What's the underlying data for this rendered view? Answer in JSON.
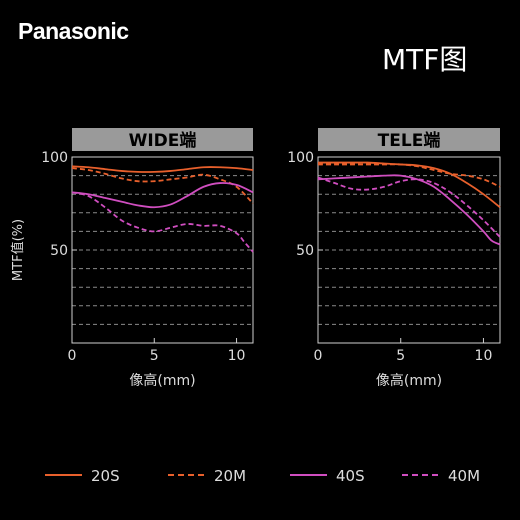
{
  "header": {
    "brand": "Panasonic",
    "title": "MTF图"
  },
  "chart_data": [
    {
      "type": "line",
      "title": "WIDE端",
      "xlabel": "像高(mm)",
      "ylabel": "MTF值(%)",
      "xlim": [
        0,
        11
      ],
      "ylim": [
        0,
        100
      ],
      "x_ticks": [
        0,
        5,
        10
      ],
      "y_ticks": [
        50,
        100
      ],
      "gridlines_y": [
        10,
        20,
        30,
        40,
        50,
        60,
        70,
        80,
        90
      ],
      "series": [
        {
          "name": "20S",
          "style": "solid",
          "color": "#e8602c",
          "x": [
            0,
            1,
            2,
            3,
            4,
            5,
            6,
            7,
            8,
            9,
            10,
            11
          ],
          "y": [
            95,
            94.5,
            93.5,
            92.5,
            92,
            92,
            92.5,
            93.5,
            94.5,
            94.5,
            94,
            93
          ]
        },
        {
          "name": "20M",
          "style": "dashed",
          "color": "#e8602c",
          "x": [
            0,
            1,
            2,
            3,
            4,
            5,
            6,
            7,
            8,
            9,
            10,
            11
          ],
          "y": [
            94,
            93,
            91,
            88.5,
            87,
            87,
            88,
            89,
            90.5,
            88,
            84,
            75
          ]
        },
        {
          "name": "40S",
          "style": "solid",
          "color": "#d04ec0",
          "x": [
            0,
            1,
            2,
            3,
            4,
            5,
            6,
            7,
            8,
            9,
            10,
            11
          ],
          "y": [
            81,
            80,
            78,
            76,
            74,
            73,
            74.5,
            79,
            84,
            86,
            85,
            81
          ]
        },
        {
          "name": "40M",
          "style": "dashed",
          "color": "#d04ec0",
          "x": [
            0,
            1,
            2,
            3,
            4,
            5,
            6,
            7,
            8,
            9,
            10,
            10.5,
            11
          ],
          "y": [
            81,
            79,
            73,
            66,
            62,
            60,
            62,
            64,
            63,
            63,
            59,
            54,
            49
          ]
        }
      ]
    },
    {
      "type": "line",
      "title": "TELE端",
      "xlabel": "像高(mm)",
      "ylabel": "",
      "xlim": [
        0,
        11
      ],
      "ylim": [
        0,
        100
      ],
      "x_ticks": [
        0,
        5,
        10
      ],
      "y_ticks": [
        50,
        100
      ],
      "gridlines_y": [
        10,
        20,
        30,
        40,
        50,
        60,
        70,
        80,
        90
      ],
      "series": [
        {
          "name": "20S",
          "style": "solid",
          "color": "#e8602c",
          "x": [
            0,
            1,
            2,
            3,
            4,
            5,
            6,
            7,
            8,
            9,
            10,
            11
          ],
          "y": [
            97,
            97,
            97,
            97,
            96.5,
            96,
            95.5,
            94,
            91,
            86,
            80,
            73
          ]
        },
        {
          "name": "20M",
          "style": "dashed",
          "color": "#e8602c",
          "x": [
            0,
            1,
            2,
            3,
            4,
            5,
            6,
            7,
            8,
            9,
            10,
            11
          ],
          "y": [
            96,
            96,
            96,
            96,
            96,
            96,
            95,
            93,
            91,
            90,
            88,
            84
          ]
        },
        {
          "name": "40S",
          "style": "solid",
          "color": "#d04ec0",
          "x": [
            0,
            1,
            2,
            3,
            4,
            5,
            6,
            7,
            8,
            9,
            10,
            10.5,
            11
          ],
          "y": [
            88,
            88.5,
            89,
            89.5,
            90,
            90,
            88,
            84,
            77,
            69,
            60,
            55,
            53
          ]
        },
        {
          "name": "40M",
          "style": "dashed",
          "color": "#d04ec0",
          "x": [
            0,
            1,
            2,
            3,
            4,
            5,
            6,
            7,
            8,
            9,
            10,
            11
          ],
          "y": [
            89,
            86,
            83,
            82.5,
            84,
            87,
            88,
            86,
            81,
            74,
            66,
            57
          ]
        }
      ]
    }
  ],
  "legend": [
    {
      "label": "20S",
      "style": "solid",
      "color": "#e8602c"
    },
    {
      "label": "20M",
      "style": "dashed",
      "color": "#e8602c"
    },
    {
      "label": "40S",
      "style": "solid",
      "color": "#d04ec0"
    },
    {
      "label": "40M",
      "style": "dashed",
      "color": "#d04ec0"
    }
  ]
}
